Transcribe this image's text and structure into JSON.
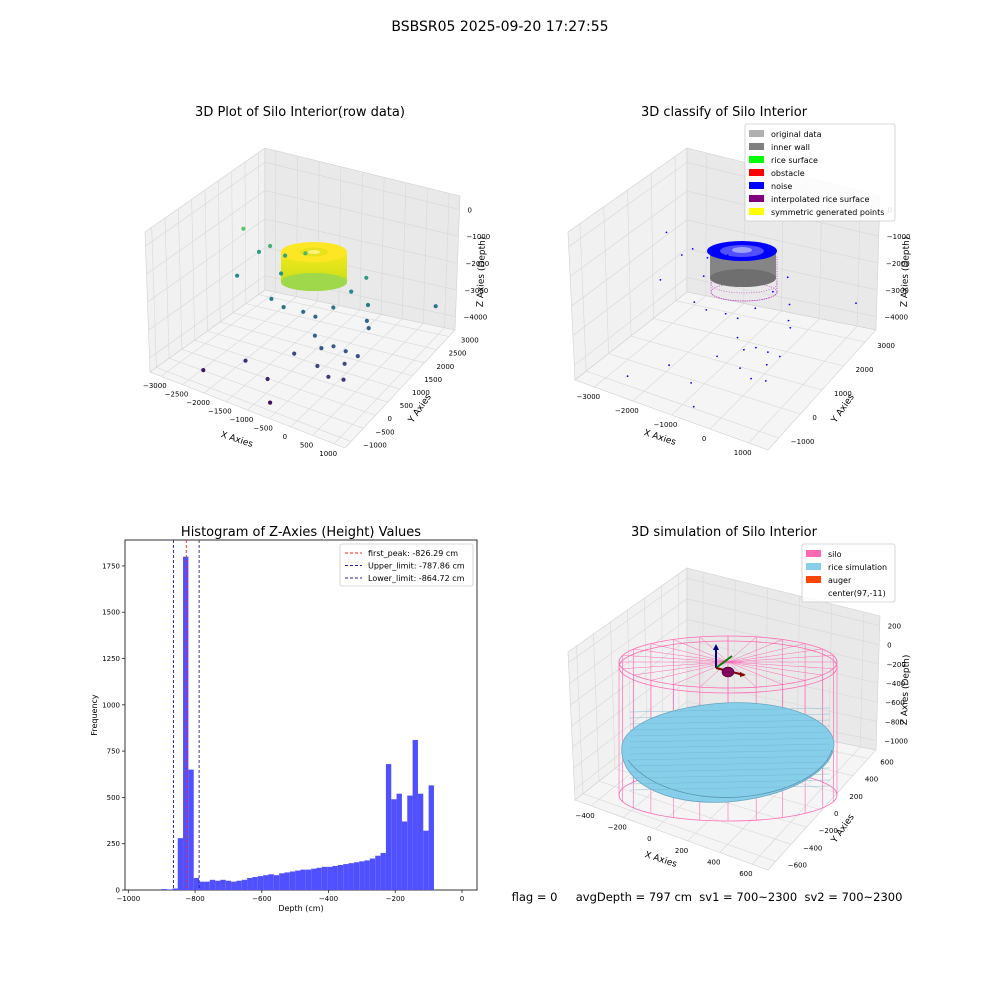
{
  "suptitle": "BSBSR05 2025-09-20 17:27:55",
  "status_line": "flag = 0     avgDepth = 797 cm  sv1 = 700~2300  sv2 = 700~2300",
  "colors": {
    "hist_bar": "#5050ff",
    "first_peak": "#ff2020",
    "limits": "#2020a0",
    "inner_wall": "#808080",
    "noise": "#0000ff",
    "interp": "#c040c0",
    "silo": "#ff69b4",
    "rice_sim": "#87ceeb",
    "auger": "#ff4500"
  },
  "chart_data": [
    {
      "type": "scatter",
      "title": "3D Plot of Silo Interior(row data)",
      "xlabel": "X Axies",
      "ylabel": "Y Axies",
      "zlabel": "Z Axies (Depth)",
      "x_ticks": [
        "−3000",
        "−2500",
        "−2000",
        "−1500",
        "−1000",
        "−500",
        "0",
        "500",
        "1000"
      ],
      "y_ticks": [
        "−1000",
        "−500",
        "0",
        "500",
        "1000",
        "1500",
        "2000",
        "2500",
        "3000"
      ],
      "z_ticks": [
        "0",
        "−1000",
        "−2000",
        "−3000",
        "−4000"
      ],
      "xlim": [
        -3000,
        1200
      ],
      "ylim": [
        -1000,
        3000
      ],
      "zlim": [
        -4500,
        0
      ],
      "colormap": "viridis (by depth)",
      "points": [
        [
          -2350,
          1200,
          -1200
        ],
        [
          -2200,
          1500,
          -2000
        ],
        [
          -2300,
          900,
          -2400
        ],
        [
          -1900,
          1400,
          -1600
        ],
        [
          -1600,
          1300,
          -2200
        ],
        [
          -1700,
          1600,
          -1900
        ],
        [
          -1500,
          800,
          -2600
        ],
        [
          -1300,
          900,
          -2800
        ],
        [
          -1000,
          1100,
          -2900
        ],
        [
          -800,
          1200,
          -3000
        ],
        [
          -600,
          1500,
          -2800
        ],
        [
          -400,
          1800,
          -2400
        ],
        [
          -200,
          2000,
          -2000
        ],
        [
          -100,
          1900,
          -2700
        ],
        [
          0,
          1700,
          -3000
        ],
        [
          100,
          1600,
          -3100
        ],
        [
          -500,
          700,
          -3100
        ],
        [
          -300,
          600,
          -3300
        ],
        [
          -100,
          700,
          -3200
        ],
        [
          100,
          800,
          -3300
        ],
        [
          300,
          900,
          -3400
        ],
        [
          200,
          600,
          -3500
        ],
        [
          -700,
          300,
          -3500
        ],
        [
          -200,
          300,
          -3600
        ],
        [
          100,
          200,
          -3700
        ],
        [
          300,
          400,
          -3800
        ],
        [
          -1500,
          -100,
          -3900
        ],
        [
          -900,
          -300,
          -4000
        ],
        [
          -2100,
          -600,
          -4200
        ],
        [
          -600,
          -700,
          -4300
        ],
        [
          800,
          2800,
          -2800
        ],
        [
          -1200,
          1500,
          -1500
        ]
      ]
    },
    {
      "type": "scatter",
      "title": "3D classify of Silo Interior",
      "xlabel": "X Axies",
      "ylabel": "Y Axies",
      "zlabel": "Z Axies (Depth)",
      "x_ticks": [
        "−3000",
        "−2000",
        "−1000",
        "0",
        "1000"
      ],
      "y_ticks": [
        "−1000",
        "0",
        "1000",
        "2000",
        "3000"
      ],
      "z_ticks": [
        "0",
        "−1000",
        "−2000",
        "−3000",
        "−4000"
      ],
      "legend": {
        "placement": "top-right",
        "entries": [
          {
            "label": "original data",
            "color": "#b0b0b0"
          },
          {
            "label": "inner wall",
            "color": "#808080"
          },
          {
            "label": "rice surface",
            "color": "#00ff00"
          },
          {
            "label": "obstacle",
            "color": "#ff0000"
          },
          {
            "label": "noise",
            "color": "#0000ff"
          },
          {
            "label": "interpolated rice surface",
            "color": "#800080"
          },
          {
            "label": "symmetric generated points",
            "color": "#ffff00"
          }
        ]
      }
    },
    {
      "type": "bar",
      "title": "Histogram of Z-Axies (Height) Values",
      "xlabel": "Depth (cm)",
      "ylabel": "Frequency",
      "xlim": [
        -1010,
        45
      ],
      "ylim": [
        0,
        1890
      ],
      "x_ticks": [
        -1000,
        -800,
        -600,
        -400,
        -200,
        0
      ],
      "y_ticks": [
        0,
        250,
        500,
        750,
        1000,
        1250,
        1500,
        1750
      ],
      "bin_width": 16,
      "bins": [
        [
          -900,
          5
        ],
        [
          -884,
          2
        ],
        [
          -868,
          8
        ],
        [
          -852,
          280
        ],
        [
          -836,
          1800
        ],
        [
          -820,
          650
        ],
        [
          -804,
          65
        ],
        [
          -788,
          45
        ],
        [
          -772,
          45
        ],
        [
          -756,
          55
        ],
        [
          -740,
          50
        ],
        [
          -724,
          55
        ],
        [
          -708,
          50
        ],
        [
          -692,
          45
        ],
        [
          -676,
          50
        ],
        [
          -660,
          55
        ],
        [
          -644,
          65
        ],
        [
          -628,
          70
        ],
        [
          -612,
          75
        ],
        [
          -596,
          80
        ],
        [
          -580,
          85
        ],
        [
          -564,
          80
        ],
        [
          -548,
          90
        ],
        [
          -532,
          95
        ],
        [
          -516,
          100
        ],
        [
          -500,
          105
        ],
        [
          -484,
          110
        ],
        [
          -468,
          110
        ],
        [
          -452,
          115
        ],
        [
          -436,
          120
        ],
        [
          -420,
          125
        ],
        [
          -404,
          125
        ],
        [
          -388,
          130
        ],
        [
          -372,
          135
        ],
        [
          -356,
          140
        ],
        [
          -340,
          145
        ],
        [
          -324,
          150
        ],
        [
          -308,
          155
        ],
        [
          -292,
          160
        ],
        [
          -276,
          170
        ],
        [
          -260,
          185
        ],
        [
          -244,
          200
        ],
        [
          -228,
          680
        ],
        [
          -212,
          490
        ],
        [
          -196,
          520
        ],
        [
          -180,
          370
        ],
        [
          -164,
          510
        ],
        [
          -148,
          810
        ],
        [
          -132,
          520
        ],
        [
          -116,
          320
        ],
        [
          -100,
          565
        ]
      ],
      "lines": [
        {
          "label": "first_peak: -826.29 cm",
          "x": -826.29,
          "color": "#ff2020"
        },
        {
          "label": "Upper_limit: -787.86 cm",
          "x": -787.86,
          "color": "#2020a0"
        },
        {
          "label": "Lower_limit: -864.72 cm",
          "x": -864.72,
          "color": "#2020a0"
        }
      ],
      "legend_placement": "top-right"
    },
    {
      "type": "scatter",
      "title": "3D simulation of Silo Interior",
      "xlabel": "X Axies",
      "ylabel": "Y Axies",
      "zlabel": "Z Axies (Depth)",
      "x_ticks": [
        "−400",
        "−200",
        "0",
        "200",
        "400",
        "600"
      ],
      "y_ticks": [
        "−600",
        "−400",
        "−200",
        "0",
        "200",
        "400",
        "600"
      ],
      "z_ticks": [
        "200",
        "0",
        "−200",
        "−400",
        "−600",
        "−800",
        "−1000"
      ],
      "legend": {
        "placement": "top-right",
        "entries": [
          {
            "label": "silo",
            "color": "#ff69b4"
          },
          {
            "label": "rice simulation",
            "color": "#87ceeb"
          },
          {
            "label": "auger",
            "color": "#ff4500"
          },
          {
            "label": "center(97,-11)",
            "color": "#ffffff"
          }
        ]
      }
    }
  ]
}
